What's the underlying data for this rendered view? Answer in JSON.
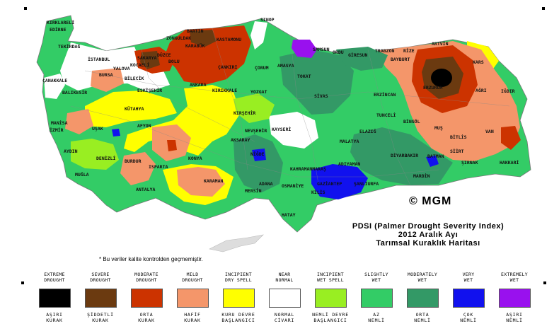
{
  "title": {
    "line1": "PDSI (Palmer Drought Severity Index)",
    "line2": "2012 Aralık Ayı",
    "line3": "Tarımsal Kuraklık Haritası"
  },
  "copyright": "© MGM",
  "note": "* Bu veriler kalite kontrolden geçmemiştir.",
  "legend": [
    {
      "en1": "EXTREME",
      "en2": "DROUGHT",
      "tr1": "AŞIRI",
      "tr2": "KURAK",
      "color": "#000000"
    },
    {
      "en1": "SEVERE",
      "en2": "DROUGHT",
      "tr1": "ŞİDDETLİ",
      "tr2": "KURAK",
      "color": "#6b3a10"
    },
    {
      "en1": "MODERATE",
      "en2": "DROUGHT",
      "tr1": "ORTA",
      "tr2": "KURAK",
      "color": "#cc3300"
    },
    {
      "en1": "MILD",
      "en2": "DROUGHT",
      "tr1": "HAFİF",
      "tr2": "KURAK",
      "color": "#f4966a"
    },
    {
      "en1": "INCIPIENT",
      "en2": "DRY SPELL",
      "tr1": "KURU DEVRE",
      "tr2": "BAŞLANGICI",
      "color": "#ffff00"
    },
    {
      "en1": "NEAR",
      "en2": "NORMAL",
      "tr1": "NORMAL",
      "tr2": "CİVARI",
      "color": "#ffffff"
    },
    {
      "en1": "INCIPIENT",
      "en2": "WET SPELL",
      "tr1": "NEMLİ DEVRE",
      "tr2": "BAŞLANGICI",
      "color": "#99ee22"
    },
    {
      "en1": "SLIGHTLY",
      "en2": "WET",
      "tr1": "AZ",
      "tr2": "NEMLİ",
      "color": "#33cc66"
    },
    {
      "en1": "MODERATELY",
      "en2": "WET",
      "tr1": "ORTA",
      "tr2": "NEMLİ",
      "color": "#339966"
    },
    {
      "en1": "VERY",
      "en2": "WET",
      "tr1": "ÇOK",
      "tr2": "NEMLİ",
      "color": "#1111ee"
    },
    {
      "en1": "EXTREMELY",
      "en2": "WET",
      "tr1": "AŞIRI",
      "tr2": "NEMLİ",
      "color": "#9911ee"
    }
  ],
  "cities": [
    {
      "name": "SINOP"
    },
    {
      "name": "BARTIN"
    },
    {
      "name": "ZONGULDAK"
    },
    {
      "name": "KARABÜK"
    },
    {
      "name": "KASTAMONU"
    },
    {
      "name": "DÜZCE"
    },
    {
      "name": "BOLU"
    },
    {
      "name": "SAKARYA"
    },
    {
      "name": "ÇANKIRI"
    },
    {
      "name": "ÇORUM"
    },
    {
      "name": "AMASYA"
    },
    {
      "name": "TOKAT"
    },
    {
      "name": "SAMSUN"
    },
    {
      "name": "ORDU"
    },
    {
      "name": "GİRESUN"
    },
    {
      "name": "TRABZON"
    },
    {
      "name": "RİZE"
    },
    {
      "name": "ARTVİN"
    },
    {
      "name": "BAYBURT"
    },
    {
      "name": "ERZURUM"
    },
    {
      "name": "KARS"
    },
    {
      "name": "AĞRI"
    },
    {
      "name": "IĞDIR"
    },
    {
      "name": "ERZİNCAN"
    },
    {
      "name": "SİVAS"
    },
    {
      "name": "TUNCELİ"
    },
    {
      "name": "BİNGÖL"
    },
    {
      "name": "MUŞ"
    },
    {
      "name": "BİTLİS"
    },
    {
      "name": "VAN"
    },
    {
      "name": "SİİRT"
    },
    {
      "name": "ŞIRNAK"
    },
    {
      "name": "HAKKARİ"
    },
    {
      "name": "BATMAN"
    },
    {
      "name": "DİYARBAKIR"
    },
    {
      "name": "MARDİN"
    },
    {
      "name": "ELAZIĞ"
    },
    {
      "name": "MALATYA"
    },
    {
      "name": "ADIYAMAN"
    },
    {
      "name": "ŞANLIURFA"
    },
    {
      "name": "KAHRAMANMARAŞ"
    },
    {
      "name": "GAZİANTEP"
    },
    {
      "name": "OSMANİYE"
    },
    {
      "name": "KİLİS"
    },
    {
      "name": "HATAY"
    },
    {
      "name": "ADANA"
    },
    {
      "name": "MERSİN"
    },
    {
      "name": "NİĞDE"
    },
    {
      "name": "KAYSERİ"
    },
    {
      "name": "NEVŞEHİR"
    },
    {
      "name": "AKSARAY"
    },
    {
      "name": "KIRŞEHİR"
    },
    {
      "name": "YOZGAT"
    },
    {
      "name": "KIRIKKALE"
    },
    {
      "name": "ANKARA"
    },
    {
      "name": "ESKİŞEHİR"
    },
    {
      "name": "BİLECİK"
    },
    {
      "name": "BURSA"
    },
    {
      "name": "YALOVA"
    },
    {
      "name": "KOCAELİ"
    },
    {
      "name": "İSTANBUL"
    },
    {
      "name": "TEKİRDAĞ"
    },
    {
      "name": "KIRKLARELİ"
    },
    {
      "name": "EDİRNE"
    },
    {
      "name": "ÇANAKKALE"
    },
    {
      "name": "BALIKESİR"
    },
    {
      "name": "MANİSA"
    },
    {
      "name": "İZMİR"
    },
    {
      "name": "AYDIN"
    },
    {
      "name": "MUĞLA"
    },
    {
      "name": "DENİZLİ"
    },
    {
      "name": "UŞAK"
    },
    {
      "name": "KÜTAHYA"
    },
    {
      "name": "AFYON"
    },
    {
      "name": "BURDUR"
    },
    {
      "name": "ISPARTA"
    },
    {
      "name": "ANTALYA"
    },
    {
      "name": "KONYA"
    },
    {
      "name": "KARAMAN"
    }
  ]
}
